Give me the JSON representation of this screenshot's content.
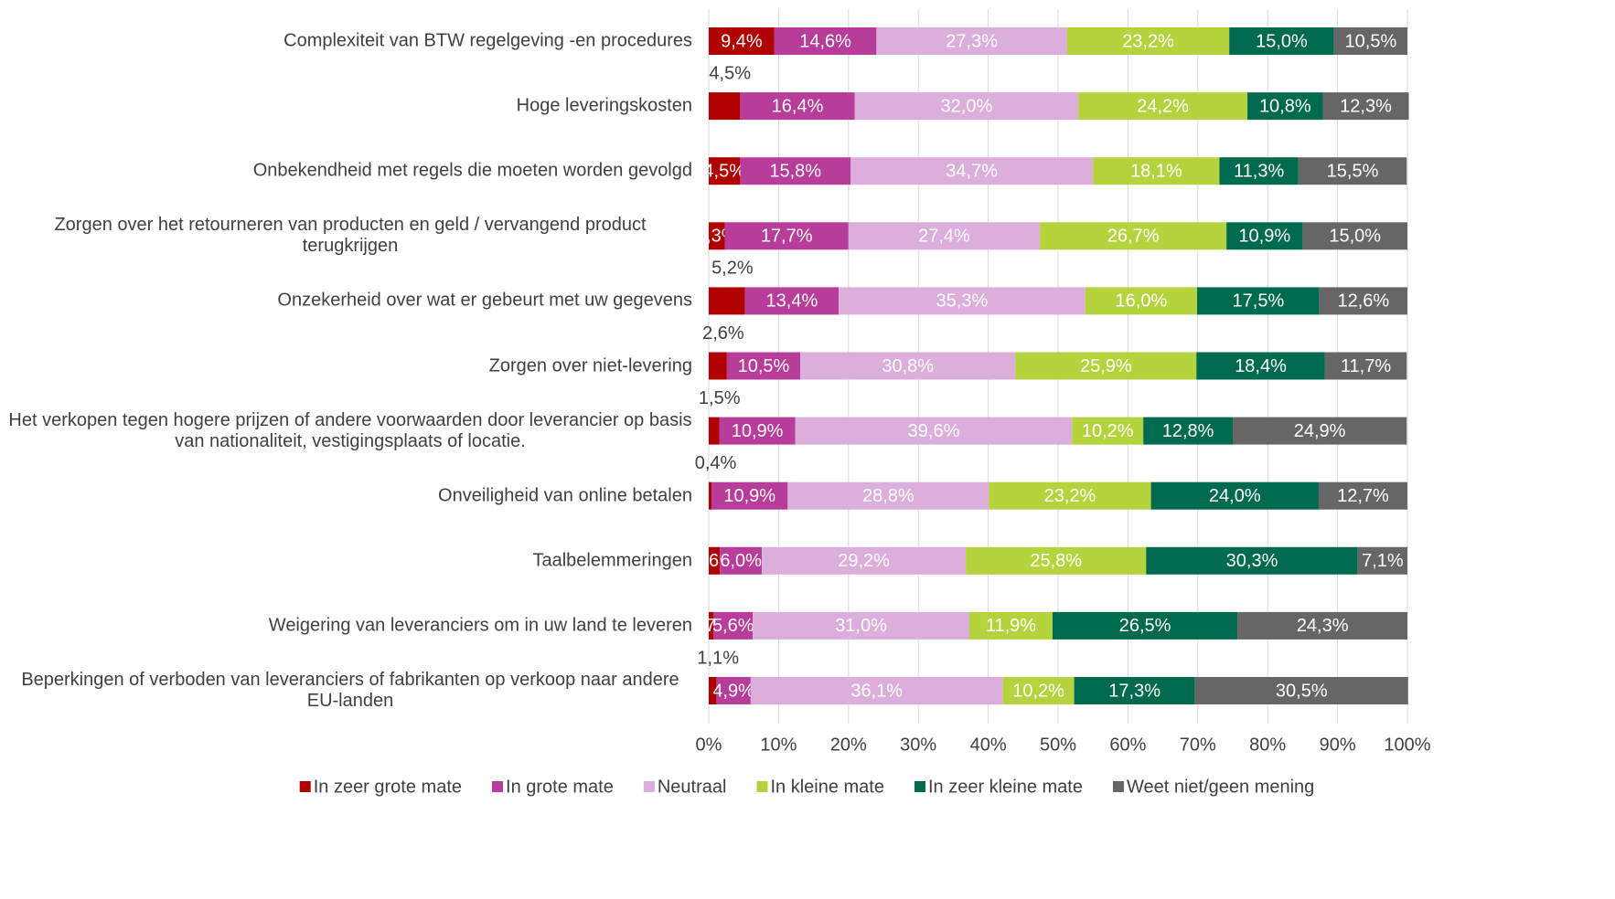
{
  "chart_data": {
    "type": "stacked_barh",
    "categories": [
      "Complexiteit van BTW regelgeving -en procedures",
      "Hoge leveringskosten",
      "Onbekendheid met regels die moeten worden gevolgd",
      "Zorgen over het retourneren van producten en geld / vervangend product terugkrijgen",
      "Onzekerheid over wat er gebeurt met uw gegevens",
      "Zorgen over niet-levering",
      "Het verkopen tegen hogere prijzen of andere voorwaarden door leverancier op basis van nationaliteit, vestigingsplaats of locatie.",
      "Onveiligheid van online betalen",
      "Taalbelemmeringen",
      "Weigering van leveranciers om in uw land te leveren",
      "Beperkingen of verboden van leveranciers of fabrikanten op verkoop naar andere EU-landen"
    ],
    "series": [
      {
        "name": "In zeer grote mate",
        "color": "#b00000",
        "values": [
          9.4,
          4.5,
          4.5,
          2.3,
          5.2,
          2.6,
          1.5,
          0.4,
          1.6,
          0.7,
          1.1
        ],
        "value_labels": [
          "9,4%",
          "4,5%",
          "4,5%",
          "2,3%",
          "5,2%",
          "2,6%",
          "1,5%",
          "0,4%",
          "1,6%",
          "0,7%",
          "1,1%"
        ]
      },
      {
        "name": "In grote mate",
        "color": "#b83c9a",
        "values": [
          14.6,
          16.4,
          15.8,
          17.7,
          13.4,
          10.5,
          10.9,
          10.9,
          6.0,
          5.6,
          4.9
        ],
        "value_labels": [
          "14,6%",
          "16,4%",
          "15,8%",
          "17,7%",
          "13,4%",
          "10,5%",
          "10,9%",
          "10,9%",
          "6,0%",
          "5,6%",
          "4,9%"
        ]
      },
      {
        "name": "Neutraal",
        "color": "#dcaedc",
        "values": [
          27.3,
          32.0,
          34.7,
          27.4,
          35.3,
          30.8,
          39.6,
          28.8,
          29.2,
          31.0,
          36.1
        ],
        "value_labels": [
          "27,3%",
          "32,0%",
          "34,7%",
          "27,4%",
          "35,3%",
          "30,8%",
          "39,6%",
          "28,8%",
          "29,2%",
          "31,0%",
          "36,1%"
        ]
      },
      {
        "name": "In kleine mate",
        "color": "#b5d33d",
        "values": [
          23.2,
          24.2,
          18.1,
          26.7,
          16.0,
          25.9,
          10.2,
          23.2,
          25.8,
          11.9,
          10.2
        ],
        "value_labels": [
          "23,2%",
          "24,2%",
          "18,1%",
          "26,7%",
          "16,0%",
          "25,9%",
          "10,2%",
          "23,2%",
          "25,8%",
          "11,9%",
          "10,2%"
        ]
      },
      {
        "name": "In zeer kleine mate",
        "color": "#006a4e",
        "values": [
          15.0,
          10.8,
          11.3,
          10.9,
          17.5,
          18.4,
          12.8,
          24.0,
          30.3,
          26.5,
          17.3
        ],
        "value_labels": [
          "15,0%",
          "10,8%",
          "11,3%",
          "10,9%",
          "17,5%",
          "18,4%",
          "12,8%",
          "24,0%",
          "30,3%",
          "26,5%",
          "17,3%"
        ]
      },
      {
        "name": "Weet niet/geen mening",
        "color": "#666666",
        "values": [
          10.5,
          12.3,
          15.5,
          15.0,
          12.6,
          11.7,
          24.9,
          12.7,
          7.1,
          24.3,
          30.5
        ],
        "value_labels": [
          "10,5%",
          "12,3%",
          "15,5%",
          "15,0%",
          "12,6%",
          "11,7%",
          "24,9%",
          "12,7%",
          "7,1%",
          "24,3%",
          "30,5%"
        ]
      }
    ],
    "xlim": [
      0,
      100
    ],
    "xticks": [
      {
        "value": 0,
        "label": "0%"
      },
      {
        "value": 10,
        "label": "10%"
      },
      {
        "value": 20,
        "label": "20%"
      },
      {
        "value": 30,
        "label": "30%"
      },
      {
        "value": 40,
        "label": "40%"
      },
      {
        "value": 50,
        "label": "50%"
      },
      {
        "value": 60,
        "label": "60%"
      },
      {
        "value": 70,
        "label": "70%"
      },
      {
        "value": 80,
        "label": "80%"
      },
      {
        "value": 90,
        "label": "90%"
      },
      {
        "value": 100,
        "label": "100%"
      }
    ],
    "grid": true,
    "legend": "bottom"
  }
}
